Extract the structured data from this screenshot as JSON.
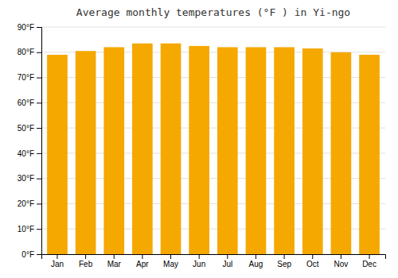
{
  "chart_data": {
    "type": "bar",
    "title": "Average monthly temperatures (°F ) in Yi-ngo",
    "categories": [
      "Jan",
      "Feb",
      "Mar",
      "Apr",
      "May",
      "Jun",
      "Jul",
      "Aug",
      "Sep",
      "Oct",
      "Nov",
      "Dec"
    ],
    "values": [
      79.0,
      80.5,
      82.0,
      83.5,
      83.5,
      82.5,
      82.0,
      82.0,
      82.0,
      81.5,
      80.0,
      79.0
    ],
    "color": "#F5A800",
    "ylim": [
      0,
      90
    ],
    "yticks": [
      {
        "value": 0,
        "label": "0°F"
      },
      {
        "value": 10,
        "label": "10°F"
      },
      {
        "value": 20,
        "label": "20°F"
      },
      {
        "value": 30,
        "label": "30°F"
      },
      {
        "value": 40,
        "label": "40°F"
      },
      {
        "value": 50,
        "label": "50°F"
      },
      {
        "value": 60,
        "label": "60°F"
      },
      {
        "value": 70,
        "label": "70°F"
      },
      {
        "value": 80,
        "label": "80°F"
      },
      {
        "value": 90,
        "label": "90°F"
      }
    ],
    "grid": true
  }
}
